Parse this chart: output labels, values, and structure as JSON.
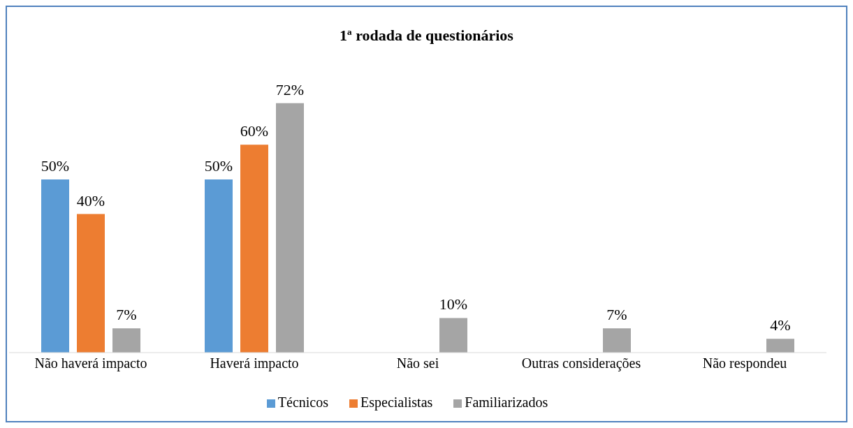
{
  "chart_data": {
    "type": "bar",
    "title": "1ª rodada de questionários",
    "categories": [
      "Não haverá impacto",
      "Haverá impacto",
      "Não sei",
      "Outras considerações",
      "Não respondeu"
    ],
    "series": [
      {
        "name": "Técnicos",
        "color": "#5b9bd5",
        "values": [
          50,
          50,
          null,
          null,
          null
        ],
        "value_labels": [
          "50%",
          "50%",
          null,
          null,
          null
        ]
      },
      {
        "name": "Especialistas",
        "color": "#ed7d31",
        "values": [
          40,
          60,
          null,
          null,
          null
        ],
        "value_labels": [
          "40%",
          "60%",
          null,
          null,
          null
        ]
      },
      {
        "name": "Familiarizados",
        "color": "#a5a5a5",
        "values": [
          7,
          72,
          10,
          7,
          4
        ],
        "value_labels": [
          "7%",
          "72%",
          "10%",
          "7%",
          "4%"
        ]
      }
    ],
    "grid": false,
    "legend": "bottom"
  }
}
